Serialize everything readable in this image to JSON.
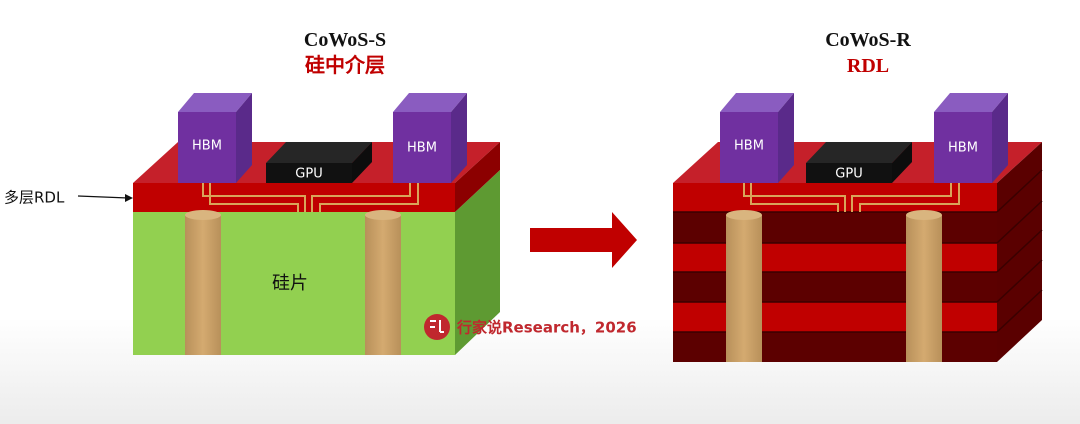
{
  "left": {
    "title": "CoWoS-S",
    "subtitle": "硅中介层",
    "hbm": [
      "HBM",
      "HBM"
    ],
    "gpu": "GPU",
    "rdl_label": "多层RDL",
    "silicon_label": "硅片"
  },
  "right": {
    "title": "CoWoS-R",
    "subtitle": "RDL",
    "hbm": [
      "HBM",
      "HBM"
    ],
    "gpu": "GPU"
  },
  "watermark": "行家说Research，2026"
}
